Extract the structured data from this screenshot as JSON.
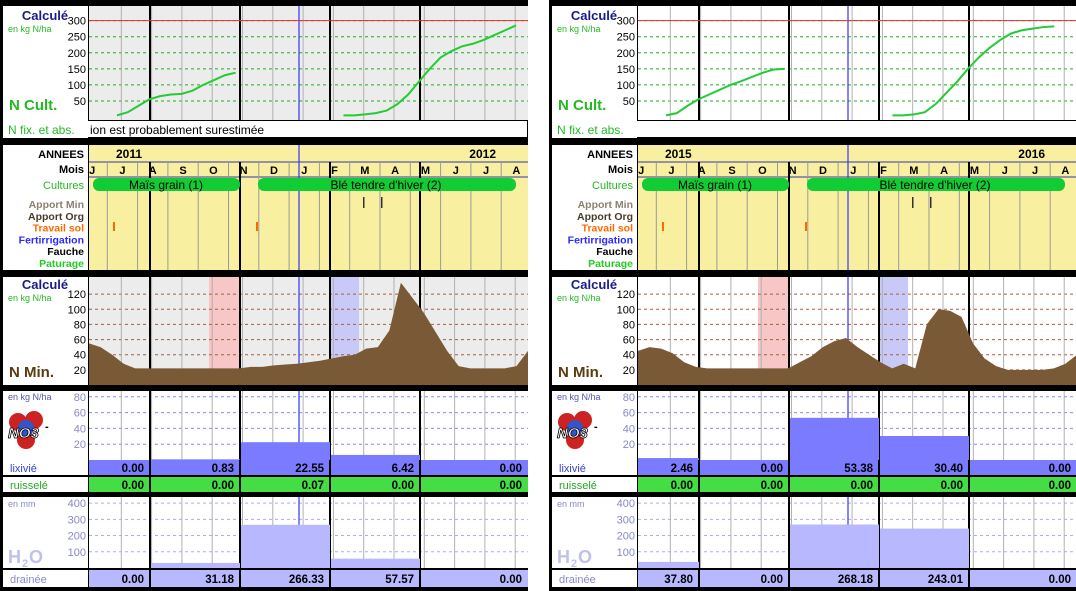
{
  "labels": {
    "calcule": "Calculé",
    "unit_kg": "en kg N/ha",
    "unit_mm": "en mm",
    "n_cult": "N Cult.",
    "n_fix": "N fix. et abs.",
    "annees": "ANNEES",
    "mois": "Mois",
    "cultures": "Cultures",
    "n_min": "N Min.",
    "lixivie": "lixivié",
    "ruissele": "ruisselé",
    "draine": "drainée",
    "no3": "NO3",
    "no3_sup": "-",
    "h2o": "H",
    "h2o_sub": "2",
    "h2o_o": "O"
  },
  "row_labels": [
    {
      "text": "Apport Min",
      "color": "#8c8070"
    },
    {
      "text": "Apport Org",
      "color": "#4a3a28"
    },
    {
      "text": "Travail sol",
      "color": "#ff6a00"
    },
    {
      "text": "Fertirrigation",
      "color": "#2a2aff"
    },
    {
      "text": "Fauche",
      "color": "#000000"
    },
    {
      "text": "Paturage",
      "color": "#22cc22"
    }
  ],
  "months": [
    "J",
    "J",
    "A",
    "S",
    "O",
    "N",
    "D",
    "J",
    "F",
    "M",
    "A",
    "M",
    "J",
    "J",
    "A"
  ],
  "crops": [
    "Maïs grain (1)",
    "Blé tendre d'hiver (2)"
  ],
  "colors": {
    "ncult_line": "#22cc33",
    "threshold": "#e03030",
    "nmin_fill": "#7a5a36",
    "lix_bar": "#7b7bff",
    "drain_bar": "#b8b8ff",
    "ruis_row": "#44dd44",
    "yellow": "#f8f0a0",
    "pink": "#f7c6c6",
    "lilac": "#c9c9f7",
    "label_blue": "#1a1a8c",
    "label_green": "#22bb22"
  },
  "panels": [
    {
      "year1": "2011",
      "year2": "2012",
      "note": "ion est probablement surestimée",
      "chart_data": [
        {
          "type": "line",
          "title": "N Cult.",
          "ylabel": "en kg N/ha",
          "ylim": [
            0,
            330
          ],
          "yticks": [
            50,
            100,
            150,
            200,
            250,
            300
          ],
          "threshold": 300,
          "xlabel": "",
          "x": [
            0,
            1,
            2,
            3,
            4,
            5,
            6,
            7,
            8,
            9,
            10,
            11,
            12,
            13,
            14,
            15,
            16,
            17,
            18,
            19,
            20,
            21,
            22,
            23,
            24,
            25,
            26,
            27,
            28,
            29,
            30,
            31,
            32,
            33,
            34,
            35,
            36,
            37
          ],
          "y": [
            5,
            15,
            35,
            55,
            65,
            70,
            72,
            82,
            100,
            115,
            130,
            138,
            null,
            null,
            null,
            null,
            null,
            null,
            null,
            null,
            null,
            5,
            5,
            8,
            12,
            20,
            40,
            70,
            110,
            150,
            185,
            205,
            220,
            228,
            240,
            255,
            270,
            285
          ]
        },
        {
          "type": "area",
          "title": "N Min.",
          "ylabel": "en kg N/ha",
          "ylim": [
            0,
            140
          ],
          "yticks": [
            20,
            40,
            60,
            80,
            100,
            120
          ],
          "y": [
            55,
            50,
            40,
            28,
            22,
            22,
            22,
            22,
            22,
            22,
            22,
            22,
            22,
            22,
            24,
            24,
            26,
            27,
            28,
            30,
            32,
            35,
            38,
            40,
            48,
            50,
            72,
            135,
            115,
            95,
            70,
            45,
            25,
            22,
            22,
            22,
            22,
            25,
            45
          ]
        },
        {
          "type": "bar",
          "title": "lixivié",
          "ylabel": "en kg N/ha",
          "ylim": [
            0,
            100
          ],
          "yticks": [
            20,
            40,
            60,
            80
          ],
          "values": [
            0.0,
            0.83,
            22.55,
            6.42,
            0.0
          ],
          "labels": [
            "0.00",
            "0.83",
            "22.55",
            "6.42",
            "0.00"
          ],
          "ruissele": [
            "0.00",
            "0.00",
            "0.07",
            "0.00",
            "0.00"
          ]
        },
        {
          "type": "bar",
          "title": "drainée",
          "ylabel": "en mm",
          "ylim": [
            0,
            450
          ],
          "yticks": [
            100,
            200,
            300,
            400
          ],
          "values": [
            0.0,
            31.18,
            266.33,
            57.57,
            0.0
          ],
          "labels": [
            "0.00",
            "31.18",
            "266.33",
            "57.57",
            "0.00"
          ]
        }
      ],
      "travail_sol": [
        0.15,
        1.13
      ],
      "apport_org": [
        2.05,
        2.16
      ]
    },
    {
      "year1": "2015",
      "year2": "2016",
      "note": "",
      "chart_data": [
        {
          "type": "line",
          "title": "N Cult.",
          "ylabel": "en kg N/ha",
          "ylim": [
            0,
            330
          ],
          "yticks": [
            50,
            100,
            150,
            200,
            250,
            300
          ],
          "threshold": 300,
          "xlabel": "",
          "x": [
            0,
            1,
            2,
            3,
            4,
            5,
            6,
            7,
            8,
            9,
            10,
            11,
            12,
            13,
            14,
            15,
            16,
            17,
            18,
            19,
            20,
            21,
            22,
            23,
            24,
            25,
            26,
            27,
            28,
            29,
            30,
            31,
            32,
            33,
            34,
            35,
            36,
            37
          ],
          "y": [
            5,
            12,
            35,
            55,
            70,
            85,
            100,
            112,
            125,
            138,
            148,
            150,
            null,
            null,
            null,
            null,
            null,
            null,
            null,
            null,
            null,
            5,
            5,
            8,
            15,
            40,
            75,
            110,
            150,
            185,
            215,
            240,
            260,
            270,
            275,
            280,
            282,
            null
          ]
        },
        {
          "type": "area",
          "title": "N Min.",
          "ylabel": "en kg N/ha",
          "ylim": [
            0,
            140
          ],
          "yticks": [
            20,
            40,
            60,
            80,
            100,
            120
          ],
          "y": [
            45,
            50,
            48,
            42,
            30,
            24,
            22,
            22,
            22,
            22,
            22,
            22,
            22,
            22,
            30,
            38,
            50,
            58,
            62,
            50,
            40,
            30,
            22,
            28,
            22,
            80,
            100,
            98,
            90,
            55,
            35,
            25,
            20,
            20,
            20,
            20,
            22,
            28,
            40
          ]
        },
        {
          "type": "bar",
          "title": "lixivié",
          "ylabel": "en kg N/ha",
          "ylim": [
            0,
            100
          ],
          "yticks": [
            20,
            40,
            60,
            80
          ],
          "values": [
            2.46,
            0.0,
            53.38,
            30.4,
            0.0
          ],
          "labels": [
            "2.46",
            "0.00",
            "53.38",
            "30.40",
            "0.00"
          ],
          "ruissele": [
            "0.00",
            "0.00",
            "0.00",
            "0.00",
            "0.00"
          ]
        },
        {
          "type": "bar",
          "title": "drainée",
          "ylabel": "en mm",
          "ylim": [
            0,
            450
          ],
          "yticks": [
            100,
            200,
            300,
            400
          ],
          "values": [
            37.8,
            0.0,
            268.18,
            243.01,
            0.0
          ],
          "labels": [
            "37.80",
            "0.00",
            "268.18",
            "243.01",
            "0.00"
          ]
        }
      ],
      "travail_sol": [
        0.15,
        1.13
      ],
      "apport_org": [
        2.05,
        2.16
      ]
    }
  ]
}
